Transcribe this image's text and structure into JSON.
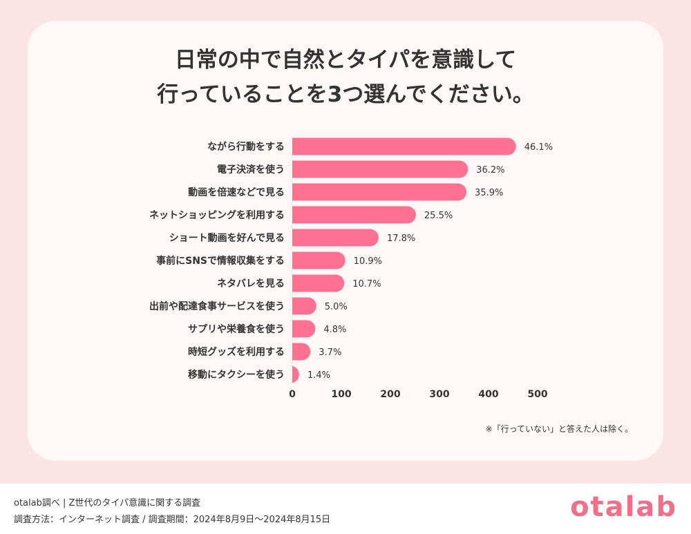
{
  "title": {
    "line1": "日常の中で自然とタイパを意識して",
    "line2": "行っていることを3つ選んでください。"
  },
  "note": "※「行っていない」と答えた人は除く。",
  "footer": {
    "source": "otalab調べ | Z世代のタイパ意識に関する調査",
    "method": "調査方法：インターネット調査 / 調査期間：2024年8月9日～2024年8月15日",
    "logo": "otalab"
  },
  "colors": {
    "bar": "#ff7091",
    "background": "#fce4e4",
    "card": "#fff8f7"
  },
  "chart_data": {
    "type": "bar",
    "orientation": "horizontal",
    "categories": [
      "ながら行動をする",
      "電子決済を使う",
      "動画を倍速などで見る",
      "ネットショッピングを利用する",
      "ショート動画を好んで見る",
      "事前にSNSで情報収集をする",
      "ネタバレを見る",
      "出前や配達食事サービスを使う",
      "サプリや栄養食を使う",
      "時短グッズを利用する",
      "移動にタクシーを使う"
    ],
    "values": [
      456,
      358,
      355,
      252,
      176,
      108,
      106,
      49,
      47,
      37,
      14
    ],
    "value_labels": [
      "46.1%",
      "36.2%",
      "35.9%",
      "25.5%",
      "17.8%",
      "10.9%",
      "10.7%",
      "5.0%",
      "4.8%",
      "3.7%",
      "1.4%"
    ],
    "xlim": [
      0,
      500
    ],
    "xticks": [
      "0",
      "100",
      "200",
      "300",
      "400",
      "500"
    ],
    "grid": false
  }
}
